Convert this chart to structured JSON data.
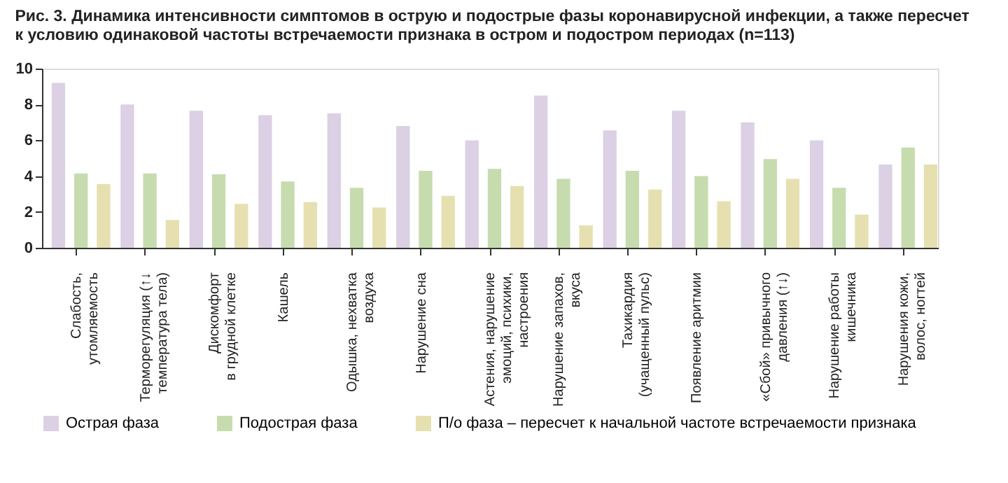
{
  "chart_data": {
    "type": "bar",
    "title": [
      "Рис. 3. Динамика интенсивности симптомов в острую и подострые фазы коронавирусной инфекции, а также пересчет",
      "к условию одинаковой частоты встречаемости признака в остром и подостром периодах (n=113)"
    ],
    "categories": [
      "Слабость,\nутомляемость",
      "Терморегуляция (↑↓\nтемпература тела)",
      "Дискомфорт\nв грудной клетке",
      "Кашель",
      "Одышка, нехватка\nвоздуха",
      "Нарушение сна",
      "Астения, нарушение\nэмоций, психики,\nнастроения",
      "Нарушение запахов,\nвкуса",
      "Тахикардия\n(учащенный пульс)",
      "Появление аритмии",
      "«Сбой» привычного\nдавления (↑↓)",
      "Нарушение работы\nкишечника",
      "Нарушения кожи,\nволос, ногтей"
    ],
    "series": [
      {
        "name": "Острая фаза",
        "color": "#dcd0e4",
        "values": [
          9.2,
          8.0,
          7.65,
          7.4,
          7.5,
          6.8,
          6.0,
          8.5,
          6.55,
          7.65,
          7.0,
          6.0,
          4.65
        ]
      },
      {
        "name": "Подострая фаза",
        "color": "#c6dcae",
        "values": [
          4.15,
          4.15,
          4.1,
          3.7,
          3.35,
          4.3,
          4.4,
          3.85,
          4.3,
          4.0,
          4.95,
          3.35,
          5.6
        ]
      },
      {
        "name": "П/о фаза – пересчет к начальной частоте встречаемости признака",
        "color": "#e6e0b0",
        "values": [
          3.55,
          1.55,
          2.45,
          2.55,
          2.25,
          2.9,
          3.45,
          1.25,
          3.25,
          2.6,
          3.85,
          1.85,
          4.65
        ]
      }
    ],
    "ylim": [
      0,
      10
    ],
    "yticks": [
      0,
      2,
      4,
      6,
      8,
      10
    ],
    "grid": false,
    "legend": "bottom"
  }
}
